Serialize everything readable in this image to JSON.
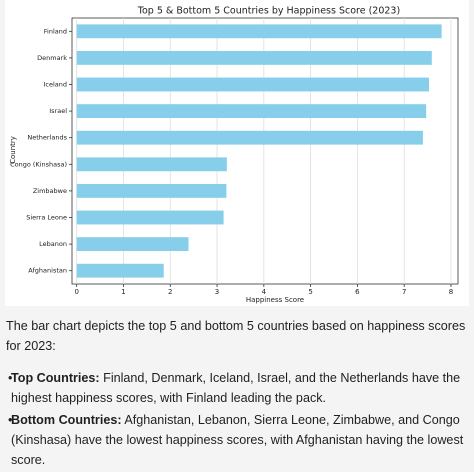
{
  "chart_data": {
    "type": "barh",
    "title": "Top 5 & Bottom 5 Countries by Happiness Score (2023)",
    "x_label": "Happiness Score",
    "y_label": "Country",
    "categories": [
      "Finland",
      "Denmark",
      "Iceland",
      "Israel",
      "Netherlands",
      "Congo (Kinshasa)",
      "Zimbabwe",
      "Sierra Leone",
      "Lebanon",
      "Afghanistan"
    ],
    "values": [
      7.8,
      7.59,
      7.53,
      7.47,
      7.4,
      3.21,
      3.2,
      3.14,
      2.39,
      1.86
    ],
    "color": "#87ceeb",
    "xlim": [
      -0.1,
      8.15
    ],
    "xticks": [
      0,
      1,
      2,
      3,
      4,
      5,
      6,
      7,
      8
    ],
    "grid": true
  },
  "response": {
    "intro": "The bar chart depicts the top 5 and bottom 5 countries based on happiness scores for 2023:",
    "bullets": [
      {
        "label": "Top Countries:",
        "text": "Finland, Denmark, Iceland, Israel, and the Netherlands have the highest happiness scores, with Finland leading the pack."
      },
      {
        "label": "Bottom Countries:",
        "text": "Afghanistan, Lebanon, Sierra Leone, Zimbabwe, and Congo (Kinshasa) have the lowest happiness scores, with Afghanistan having the lowest score."
      }
    ]
  }
}
